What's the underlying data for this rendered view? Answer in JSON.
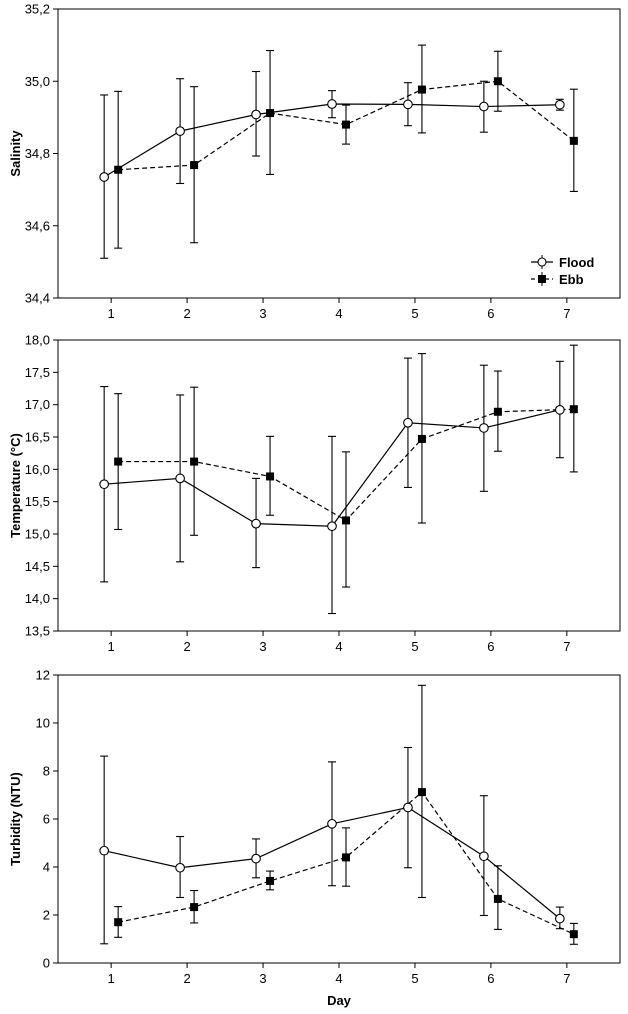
{
  "chart_data": [
    {
      "type": "line",
      "title": "",
      "xlabel": "",
      "ylabel": "Salinity",
      "x": [
        1,
        2,
        3,
        4,
        5,
        6,
        7
      ],
      "xlim": [
        0.3,
        7.7
      ],
      "ylim": [
        34.4,
        35.2
      ],
      "yticks": [
        "34,4",
        "34,6",
        "34,8",
        "35,0",
        "35,2"
      ],
      "yticks_values": [
        34.4,
        34.6,
        34.8,
        35.0,
        35.2
      ],
      "xticks": [
        "1",
        "2",
        "3",
        "4",
        "5",
        "6",
        "7"
      ],
      "grid": false,
      "legend": "bottom-right",
      "series": [
        {
          "name": "Flood",
          "marker": "open-circle",
          "style": "solid",
          "values": [
            34.735,
            34.862,
            34.908,
            34.937,
            34.936,
            34.93,
            34.935
          ],
          "lower": [
            34.51,
            34.717,
            34.793,
            34.899,
            34.877,
            34.859,
            34.92
          ],
          "upper": [
            34.962,
            35.007,
            35.027,
            34.974,
            34.996,
            35.0,
            34.95
          ]
        },
        {
          "name": "Ebb",
          "marker": "filled-square",
          "style": "dashed",
          "values": [
            34.755,
            34.768,
            34.912,
            34.88,
            34.977,
            35.0,
            34.835
          ],
          "lower": [
            34.538,
            34.553,
            34.742,
            34.826,
            34.857,
            34.917,
            34.695
          ],
          "upper": [
            34.972,
            34.985,
            35.085,
            34.934,
            35.1,
            35.083,
            34.978
          ]
        }
      ]
    },
    {
      "type": "line",
      "title": "",
      "xlabel": "",
      "ylabel": "Temperature (°C)",
      "x": [
        1,
        2,
        3,
        4,
        5,
        6,
        7
      ],
      "xlim": [
        0.3,
        7.7
      ],
      "ylim": [
        13.5,
        18.0
      ],
      "yticks": [
        "13,5",
        "14,0",
        "14,5",
        "15,0",
        "15,5",
        "16,0",
        "16,5",
        "17,0",
        "17,5",
        "18,0"
      ],
      "yticks_values": [
        13.5,
        14.0,
        14.5,
        15.0,
        15.5,
        16.0,
        16.5,
        17.0,
        17.5,
        18.0
      ],
      "xticks": [
        "1",
        "2",
        "3",
        "4",
        "5",
        "6",
        "7"
      ],
      "grid": false,
      "series": [
        {
          "name": "Flood",
          "marker": "open-circle",
          "style": "solid",
          "values": [
            15.77,
            15.86,
            15.16,
            15.12,
            16.72,
            16.64,
            16.92
          ],
          "lower": [
            14.26,
            14.57,
            14.48,
            13.77,
            15.72,
            15.66,
            16.18
          ],
          "upper": [
            17.28,
            17.15,
            15.86,
            16.51,
            17.72,
            17.61,
            17.67
          ]
        },
        {
          "name": "Ebb",
          "marker": "filled-square",
          "style": "dashed",
          "values": [
            16.12,
            16.12,
            15.89,
            15.21,
            16.47,
            16.89,
            16.93
          ],
          "lower": [
            15.07,
            14.98,
            15.29,
            14.18,
            15.17,
            16.28,
            15.96
          ],
          "upper": [
            17.17,
            17.27,
            16.51,
            16.27,
            17.79,
            17.52,
            17.92
          ]
        }
      ]
    },
    {
      "type": "line",
      "title": "",
      "xlabel": "Day",
      "ylabel": "Turbidity (NTU)",
      "x": [
        1,
        2,
        3,
        4,
        5,
        6,
        7
      ],
      "xlim": [
        0.3,
        7.7
      ],
      "ylim": [
        0,
        12
      ],
      "yticks": [
        "0",
        "2",
        "4",
        "6",
        "8",
        "10",
        "12"
      ],
      "yticks_values": [
        0,
        2,
        4,
        6,
        8,
        10,
        12
      ],
      "xticks": [
        "1",
        "2",
        "3",
        "4",
        "5",
        "6",
        "7"
      ],
      "grid": false,
      "series": [
        {
          "name": "Flood",
          "marker": "open-circle",
          "style": "solid",
          "values": [
            4.68,
            3.97,
            4.35,
            5.8,
            6.48,
            4.45,
            1.85
          ],
          "lower": [
            0.8,
            2.73,
            3.55,
            3.22,
            3.97,
            1.98,
            1.43
          ],
          "upper": [
            8.62,
            5.27,
            5.17,
            8.38,
            8.98,
            6.97,
            2.33
          ]
        },
        {
          "name": "Ebb",
          "marker": "filled-square",
          "style": "dashed",
          "values": [
            1.7,
            2.33,
            3.42,
            4.4,
            7.12,
            2.67,
            1.2
          ],
          "lower": [
            1.07,
            1.67,
            3.05,
            3.2,
            2.73,
            1.4,
            0.78
          ],
          "upper": [
            2.35,
            3.02,
            3.83,
            5.63,
            11.57,
            4.05,
            1.65
          ]
        }
      ]
    }
  ]
}
